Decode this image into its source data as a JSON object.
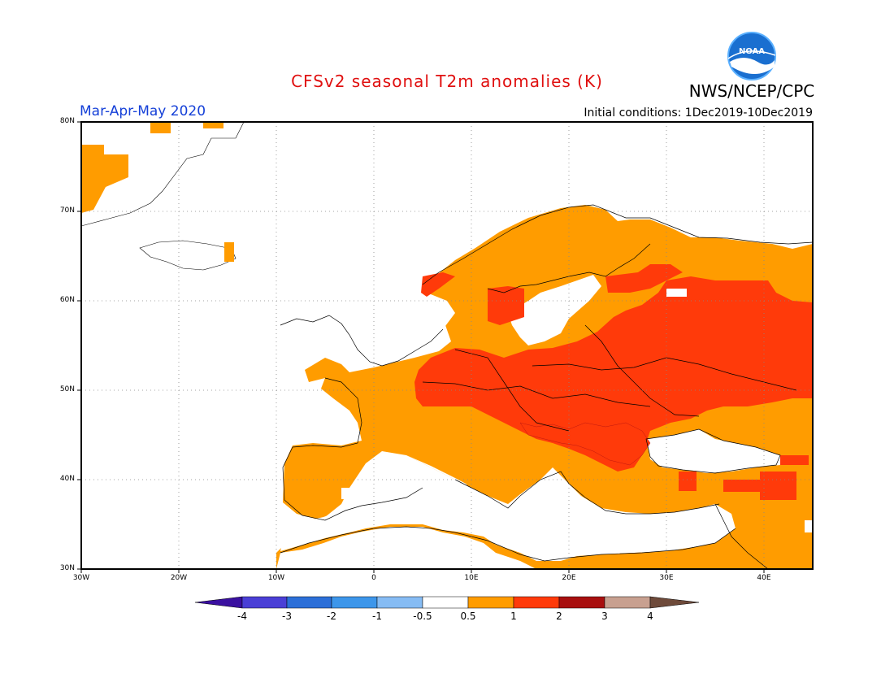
{
  "header": {
    "title": "CFSv2 seasonal T2m anomalies (K)",
    "agency": "NWS/NCEP/CPC",
    "season": "Mar-Apr-May 2020",
    "initial_conditions": "Initial conditions: 1Dec2019-10Dec2019",
    "logo_text": "NOAA"
  },
  "map": {
    "region": "Europe",
    "projection": "cylindrical equidistant",
    "lon_range": [
      -30,
      45
    ],
    "lat_range": [
      30,
      80
    ],
    "lat_labels": [
      "80N",
      "70N",
      "60N",
      "50N",
      "40N",
      "30N"
    ],
    "lon_labels": [
      "30W",
      "20W",
      "10W",
      "0",
      "10E",
      "20E",
      "30E",
      "40E"
    ],
    "grid": "dotted"
  },
  "colorbar": {
    "labels": [
      "-4",
      "-3",
      "-2",
      "-1",
      "-0.5",
      "0.5",
      "1",
      "2",
      "3",
      "4"
    ],
    "colors": [
      "#3a10a0",
      "#4a3fd6",
      "#2c6fd8",
      "#3d96ea",
      "#86bcf4",
      "#ffffff",
      "#ff9c00",
      "#ff3a0a",
      "#a80f0f",
      "#c8a090",
      "#6e4a3a"
    ]
  },
  "anomaly_fill": {
    "between_0_5_and_1": "#ff9c00",
    "between_1_and_2": "#ff3a0a",
    "near_zero": "#ffffff"
  }
}
